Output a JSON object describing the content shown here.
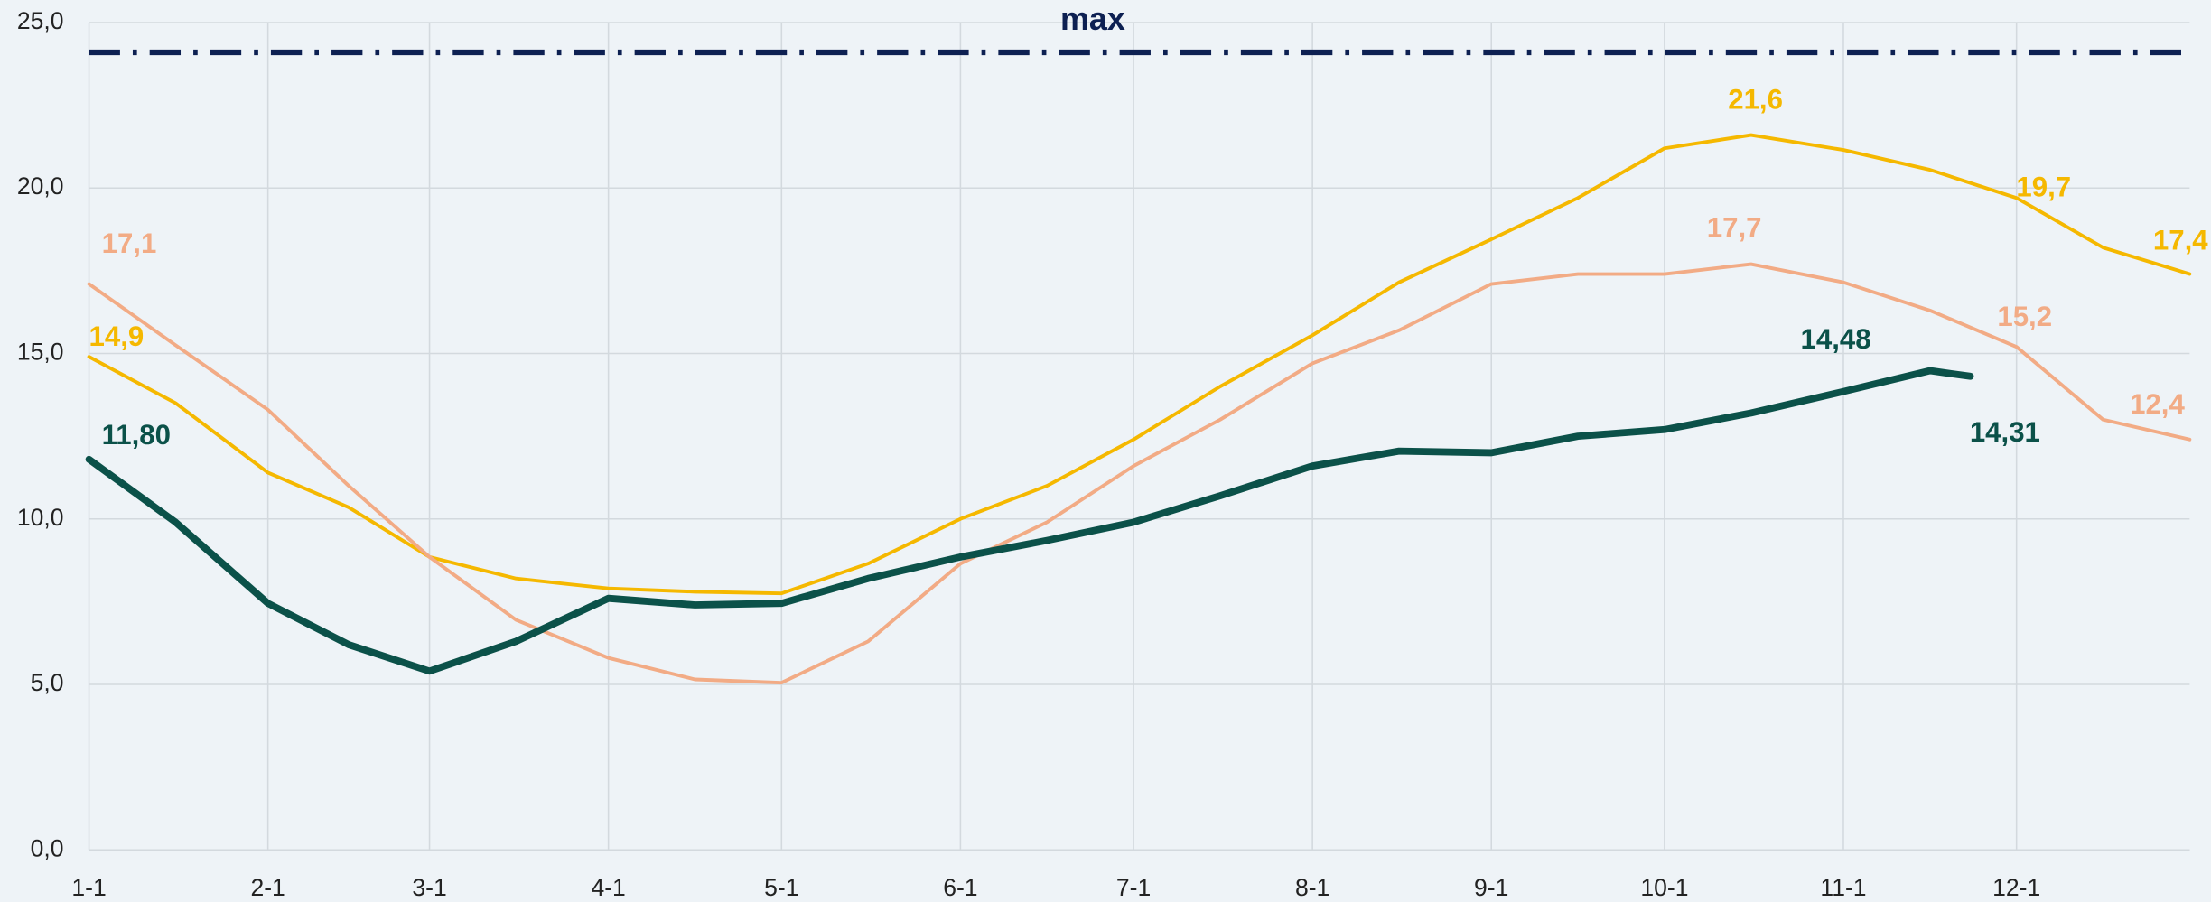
{
  "chart_data": {
    "type": "line",
    "xlim": [
      1,
      365
    ],
    "xticks": [
      {
        "value": 1,
        "label": "1-1"
      },
      {
        "value": 32,
        "label": "2-1"
      },
      {
        "value": 60,
        "label": "3-1"
      },
      {
        "value": 91,
        "label": "4-1"
      },
      {
        "value": 121,
        "label": "5-1"
      },
      {
        "value": 152,
        "label": "6-1"
      },
      {
        "value": 182,
        "label": "7-1"
      },
      {
        "value": 213,
        "label": "8-1"
      },
      {
        "value": 244,
        "label": "9-1"
      },
      {
        "value": 274,
        "label": "10-1"
      },
      {
        "value": 305,
        "label": "11-1"
      },
      {
        "value": 335,
        "label": "12-1"
      }
    ],
    "ylim": [
      0,
      25
    ],
    "yticks": [
      {
        "value": 0,
        "label": "0,0"
      },
      {
        "value": 5,
        "label": "5,0"
      },
      {
        "value": 10,
        "label": "10,0"
      },
      {
        "value": 15,
        "label": "15,0"
      },
      {
        "value": 20,
        "label": "20,0"
      },
      {
        "value": 25,
        "label": "25,0"
      }
    ],
    "grid": true,
    "reference_lines": [
      {
        "label": "max",
        "value": 24.1,
        "color": "#0d2052"
      }
    ],
    "series": [
      {
        "color": "#f5b800",
        "width": 2.5,
        "x": [
          1,
          16,
          32,
          46,
          60,
          75,
          91,
          106,
          121,
          136,
          152,
          167,
          182,
          197,
          213,
          228,
          244,
          259,
          274,
          289,
          305,
          320,
          335,
          350,
          365
        ],
        "values": [
          14.9,
          13.5,
          11.4,
          10.35,
          8.85,
          8.2,
          7.9,
          7.8,
          7.75,
          8.65,
          10.0,
          11.0,
          12.4,
          14.0,
          15.55,
          17.15,
          18.45,
          19.7,
          21.2,
          21.6,
          21.15,
          20.55,
          19.7,
          18.2,
          17.4
        ],
        "value_labels": [
          "14,9",
          null,
          null,
          null,
          null,
          null,
          null,
          null,
          null,
          null,
          null,
          null,
          null,
          null,
          null,
          null,
          null,
          null,
          null,
          "21,6",
          null,
          null,
          "19,7",
          null,
          "17,4"
        ]
      },
      {
        "color": "#f2ab85",
        "width": 2.5,
        "x": [
          1,
          16,
          32,
          46,
          60,
          75,
          91,
          106,
          121,
          136,
          152,
          167,
          182,
          197,
          213,
          228,
          244,
          259,
          274,
          289,
          305,
          320,
          335,
          350,
          365
        ],
        "values": [
          17.1,
          15.25,
          13.3,
          11.0,
          8.85,
          6.95,
          5.8,
          5.15,
          5.05,
          6.3,
          8.65,
          9.9,
          11.6,
          13.0,
          14.7,
          15.7,
          17.1,
          17.4,
          17.4,
          17.7,
          17.15,
          16.3,
          15.2,
          13.0,
          12.4
        ],
        "value_labels": [
          "17,1",
          null,
          null,
          null,
          null,
          null,
          null,
          null,
          null,
          null,
          null,
          null,
          null,
          null,
          null,
          null,
          null,
          null,
          null,
          "17,7",
          null,
          null,
          "15,2",
          null,
          "12,4"
        ]
      },
      {
        "color": "#0b5149",
        "width": 5,
        "x": [
          1,
          16,
          32,
          46,
          60,
          75,
          91,
          106,
          121,
          136,
          152,
          167,
          182,
          197,
          213,
          228,
          244,
          259,
          274,
          289,
          305,
          320,
          327
        ],
        "values": [
          11.8,
          9.9,
          7.45,
          6.2,
          5.4,
          6.3,
          7.6,
          7.4,
          7.45,
          8.2,
          8.85,
          9.35,
          9.9,
          10.7,
          11.6,
          12.05,
          12.0,
          12.5,
          12.7,
          13.2,
          13.85,
          14.48,
          14.31
        ],
        "value_labels": [
          "11,80",
          null,
          null,
          null,
          null,
          null,
          null,
          null,
          null,
          null,
          null,
          null,
          null,
          null,
          null,
          null,
          null,
          null,
          null,
          null,
          null,
          "14,48",
          "14,31"
        ]
      }
    ]
  }
}
